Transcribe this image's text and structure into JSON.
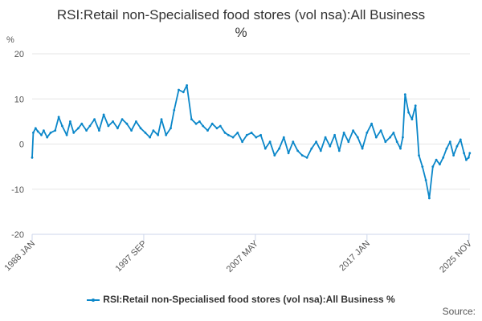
{
  "page": {
    "title_line1": "RSI:Retail non-Specialised food stores (vol nsa):All Business",
    "title_line2": "%",
    "unit_label": "%",
    "source_label": "Source:"
  },
  "chart_data": {
    "type": "line",
    "title": "RSI:Retail non-Specialised food stores (vol nsa):All Business %",
    "ylabel": "%",
    "ylim": [
      -20,
      20
    ],
    "yticks": [
      20,
      10,
      0,
      -10,
      -20
    ],
    "x_range": [
      1988.0,
      2025.917
    ],
    "xticks": [
      {
        "label": "1988 JAN",
        "value": 1988.0
      },
      {
        "label": "1997 SEP",
        "value": 1997.667
      },
      {
        "label": "2007 MAY",
        "value": 2007.333
      },
      {
        "label": "2017 JAN",
        "value": 2017.0
      },
      {
        "label": "2025 NOV",
        "value": 2025.833
      }
    ],
    "grid": true,
    "legend_position": "bottom",
    "color": "#0b87c9",
    "series": [
      {
        "name": "RSI:Retail non-Specialised food stores (vol nsa):All Business %",
        "x": [
          1988.0,
          1988.1,
          1988.3,
          1988.5,
          1988.8,
          1989.0,
          1989.3,
          1989.6,
          1990.0,
          1990.3,
          1990.6,
          1991.0,
          1991.3,
          1991.6,
          1992.0,
          1992.3,
          1992.7,
          1993.0,
          1993.4,
          1993.8,
          1994.2,
          1994.6,
          1995.0,
          1995.4,
          1995.8,
          1996.2,
          1996.6,
          1997.0,
          1997.4,
          1997.8,
          1998.2,
          1998.5,
          1998.9,
          1999.2,
          1999.6,
          2000.0,
          2000.3,
          2000.7,
          2001.1,
          2001.4,
          2001.8,
          2002.2,
          2002.5,
          2002.8,
          2003.2,
          2003.6,
          2004.0,
          2004.3,
          2004.7,
          2005.0,
          2005.4,
          2005.8,
          2006.2,
          2006.6,
          2007.0,
          2007.4,
          2007.8,
          2008.2,
          2008.6,
          2009.0,
          2009.4,
          2009.8,
          2010.2,
          2010.6,
          2011.0,
          2011.4,
          2011.8,
          2012.2,
          2012.6,
          2013.0,
          2013.4,
          2013.8,
          2014.2,
          2014.6,
          2015.0,
          2015.4,
          2015.8,
          2016.2,
          2016.6,
          2017.0,
          2017.4,
          2017.8,
          2018.2,
          2018.6,
          2019.0,
          2019.3,
          2019.6,
          2019.9,
          2020.1,
          2020.3,
          2020.6,
          2020.9,
          2021.2,
          2021.5,
          2021.8,
          2022.1,
          2022.4,
          2022.7,
          2023.0,
          2023.3,
          2023.6,
          2023.9,
          2024.2,
          2024.5,
          2024.8,
          2025.1,
          2025.4,
          2025.6,
          2025.8,
          2025.9
        ],
        "values": [
          -3.0,
          2.5,
          3.5,
          2.8,
          2.0,
          3.0,
          1.5,
          2.5,
          3.0,
          6.0,
          4.0,
          2.0,
          5.0,
          2.5,
          3.5,
          4.5,
          3.0,
          4.0,
          5.5,
          3.0,
          6.5,
          4.0,
          5.0,
          3.5,
          5.5,
          4.5,
          3.0,
          5.0,
          3.5,
          2.5,
          1.5,
          3.0,
          2.0,
          5.5,
          2.0,
          3.5,
          7.5,
          12.0,
          11.5,
          13.0,
          5.5,
          4.5,
          5.0,
          4.0,
          3.0,
          4.5,
          3.5,
          4.0,
          2.5,
          2.0,
          1.5,
          2.5,
          0.5,
          2.0,
          2.5,
          1.5,
          2.0,
          -1.0,
          0.5,
          -2.5,
          -1.0,
          1.5,
          -2.0,
          0.5,
          -1.5,
          -2.5,
          -3.0,
          -1.0,
          0.5,
          -1.5,
          1.5,
          -0.5,
          2.0,
          -1.5,
          2.5,
          0.5,
          3.0,
          1.5,
          -1.0,
          2.5,
          4.5,
          1.5,
          3.0,
          0.5,
          1.5,
          2.5,
          0.5,
          -1.0,
          1.5,
          11.0,
          7.0,
          5.5,
          8.5,
          -2.5,
          -5.0,
          -8.0,
          -12.0,
          -5.0,
          -3.5,
          -4.5,
          -3.0,
          -1.0,
          0.5,
          -2.5,
          -0.5,
          1.0,
          -2.0,
          -3.5,
          -3.0,
          -2.0
        ]
      }
    ]
  }
}
